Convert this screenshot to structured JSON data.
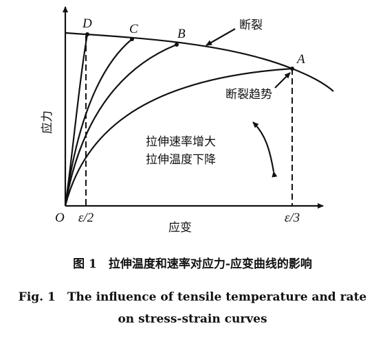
{
  "figure": {
    "points": [
      "D",
      "C",
      "B",
      "A"
    ],
    "fracture": "断裂",
    "fracture_trend": "断裂趋势",
    "rate_increase": "拉伸速率增大",
    "temp_decrease": "拉伸温度下降",
    "y_axis": "应力",
    "x_axis": "应变",
    "origin": "O",
    "ticks": [
      "ε/2",
      "ε/3"
    ]
  },
  "caption": {
    "zh": "图 1　拉伸温度和速率对应力-应变曲线的影响",
    "en_line1": "Fig. 1　The influence of tensile temperature and rate",
    "en_line2": "on stress-strain curves"
  }
}
